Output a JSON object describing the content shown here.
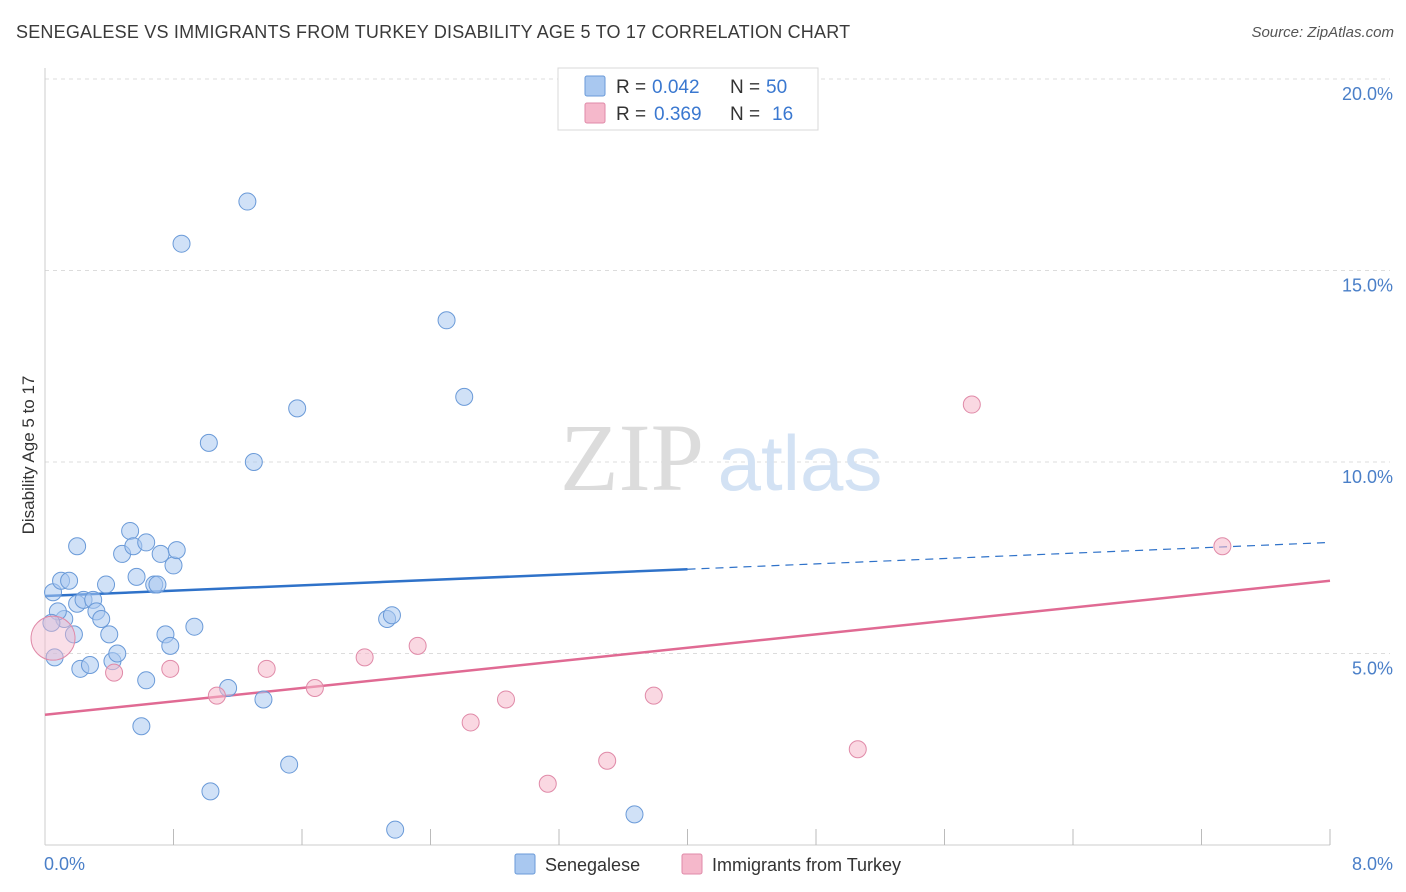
{
  "title": "SENEGALESE VS IMMIGRANTS FROM TURKEY DISABILITY AGE 5 TO 17 CORRELATION CHART",
  "source": "Source: ZipAtlas.com",
  "watermark": {
    "zip": "ZIP",
    "atlas": "atlas"
  },
  "legend": {
    "rows": [
      {
        "r_label": "R =",
        "r_value": "0.042",
        "n_label": "N =",
        "n_value": "50"
      },
      {
        "r_label": "R =",
        "r_value": "0.369",
        "n_label": "N =",
        "n_value": "16"
      }
    ]
  },
  "chart_data": {
    "type": "scatter",
    "ylabel": "Disability Age 5 to 17",
    "xlim": [
      0,
      8
    ],
    "ylim": [
      0,
      20
    ],
    "x_tick_labels": [
      "0.0%",
      "8.0%"
    ],
    "y_ticks": [
      5,
      10,
      15,
      20
    ],
    "y_tick_labels": [
      "5.0%",
      "10.0%",
      "15.0%",
      "20.0%"
    ],
    "grid": true,
    "colors": {
      "senegalese": "#a9c8f0",
      "turkey": "#f5b8cb",
      "senegalese_line": "#2f72c9",
      "turkey_line": "#e06a93"
    },
    "series": [
      {
        "name": "Senegalese",
        "points": [
          [
            0.05,
            6.6
          ],
          [
            0.1,
            6.9
          ],
          [
            0.15,
            6.9
          ],
          [
            0.12,
            5.9
          ],
          [
            0.08,
            6.1
          ],
          [
            0.04,
            5.8
          ],
          [
            0.06,
            4.9
          ],
          [
            0.18,
            5.5
          ],
          [
            0.2,
            6.3
          ],
          [
            0.24,
            6.4
          ],
          [
            0.3,
            6.4
          ],
          [
            0.32,
            6.1
          ],
          [
            0.35,
            5.9
          ],
          [
            0.38,
            6.8
          ],
          [
            0.4,
            5.5
          ],
          [
            0.42,
            4.8
          ],
          [
            0.45,
            5.0
          ],
          [
            0.48,
            7.6
          ],
          [
            0.53,
            8.2
          ],
          [
            0.55,
            7.8
          ],
          [
            0.57,
            7.0
          ],
          [
            0.63,
            7.9
          ],
          [
            0.68,
            6.8
          ],
          [
            0.7,
            6.8
          ],
          [
            0.72,
            7.6
          ],
          [
            0.75,
            5.5
          ],
          [
            0.78,
            5.2
          ],
          [
            0.8,
            7.3
          ],
          [
            0.82,
            7.7
          ],
          [
            0.93,
            5.7
          ],
          [
            0.63,
            4.3
          ],
          [
            0.22,
            4.6
          ],
          [
            0.28,
            4.7
          ],
          [
            0.6,
            3.1
          ],
          [
            0.2,
            7.8
          ],
          [
            0.85,
            15.7
          ],
          [
            1.26,
            16.8
          ],
          [
            1.02,
            10.5
          ],
          [
            1.3,
            10.0
          ],
          [
            1.57,
            11.4
          ],
          [
            2.5,
            13.7
          ],
          [
            2.61,
            11.7
          ],
          [
            2.13,
            5.9
          ],
          [
            2.16,
            6.0
          ],
          [
            1.14,
            4.1
          ],
          [
            1.36,
            3.8
          ],
          [
            1.52,
            2.1
          ],
          [
            1.03,
            1.4
          ],
          [
            2.18,
            0.4
          ],
          [
            3.67,
            0.8
          ]
        ]
      },
      {
        "name": "Immigrants from Turkey",
        "points": [
          [
            0.05,
            5.4
          ],
          [
            0.43,
            4.5
          ],
          [
            0.78,
            4.6
          ],
          [
            1.07,
            3.9
          ],
          [
            1.38,
            4.6
          ],
          [
            1.68,
            4.1
          ],
          [
            1.99,
            4.9
          ],
          [
            2.32,
            5.2
          ],
          [
            2.65,
            3.2
          ],
          [
            2.87,
            3.8
          ],
          [
            3.13,
            1.6
          ],
          [
            3.5,
            2.2
          ],
          [
            3.79,
            3.9
          ],
          [
            5.06,
            2.5
          ],
          [
            5.77,
            11.5
          ],
          [
            7.33,
            7.8
          ]
        ]
      }
    ],
    "trend_lines": [
      {
        "series": "Senegalese",
        "solid_from": [
          0.0,
          6.5
        ],
        "solid_to": [
          4.0,
          7.2
        ],
        "dashed_to": [
          8.0,
          7.9
        ]
      },
      {
        "series": "Immigrants from Turkey",
        "from": [
          0.0,
          3.4
        ],
        "to": [
          8.0,
          6.9
        ]
      }
    ]
  }
}
